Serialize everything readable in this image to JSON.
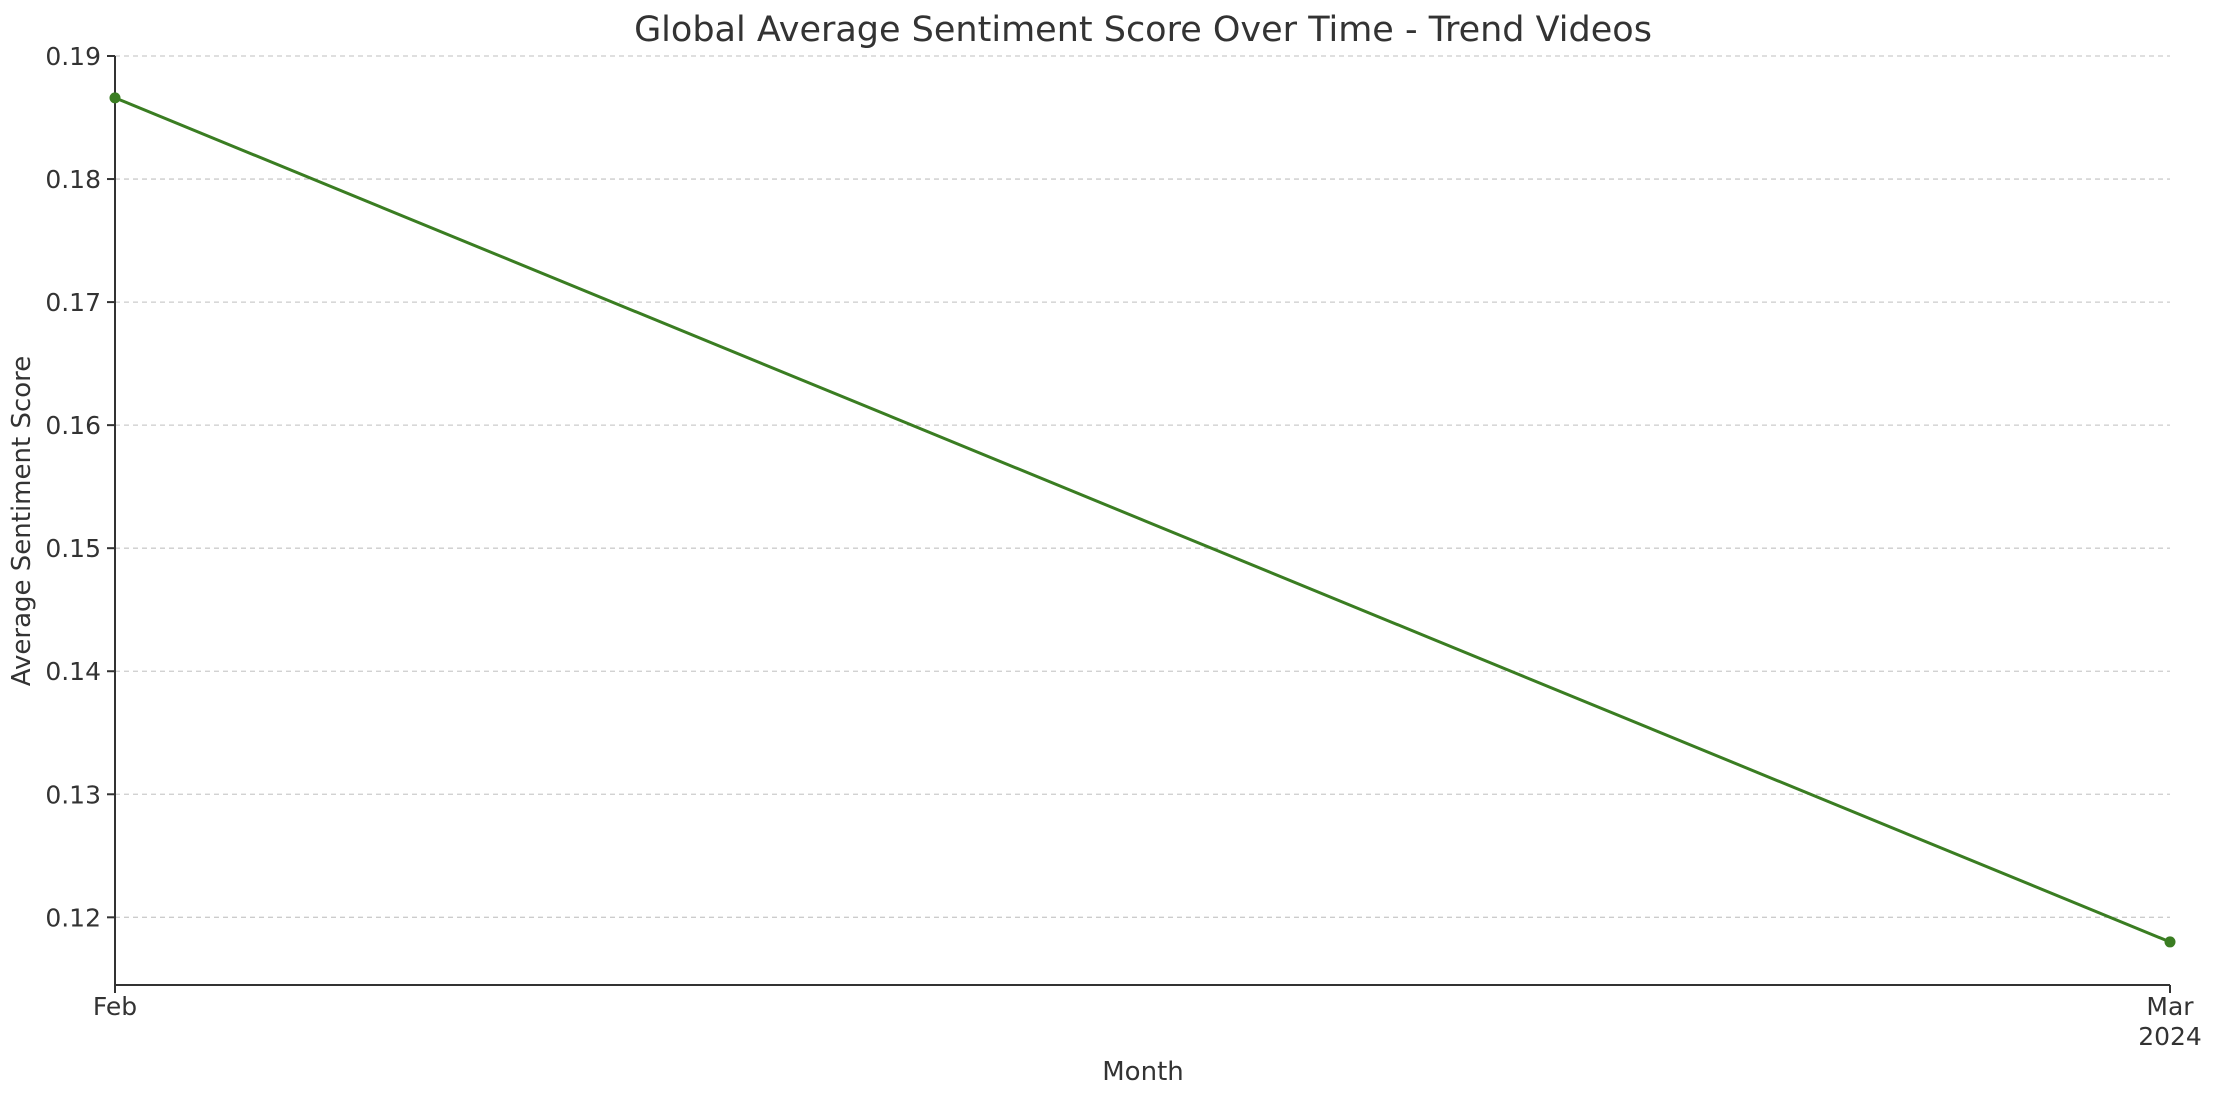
{
  "chart_data": {
    "type": "line",
    "title": "Global Average Sentiment Score Over Time - Trend Videos",
    "xlabel": "Month",
    "ylabel": "Average Sentiment Score",
    "x": [
      "2024-02",
      "2024-03"
    ],
    "x_tick_labels": [
      {
        "month": "Feb",
        "year": ""
      },
      {
        "month": "Mar",
        "year": "2024"
      }
    ],
    "series": [
      {
        "values": [
          0.1866,
          0.118
        ],
        "color": "#3a7d22"
      }
    ],
    "ylim": [
      0.1145,
      0.19
    ],
    "y_ticks": [
      0.12,
      0.13,
      0.14,
      0.15,
      0.16,
      0.17,
      0.18,
      0.19
    ],
    "y_tick_labels": [
      "0.12",
      "0.13",
      "0.14",
      "0.15",
      "0.16",
      "0.17",
      "0.18",
      "0.19"
    ],
    "grid": "horizontal-dashed",
    "legend": "none"
  }
}
